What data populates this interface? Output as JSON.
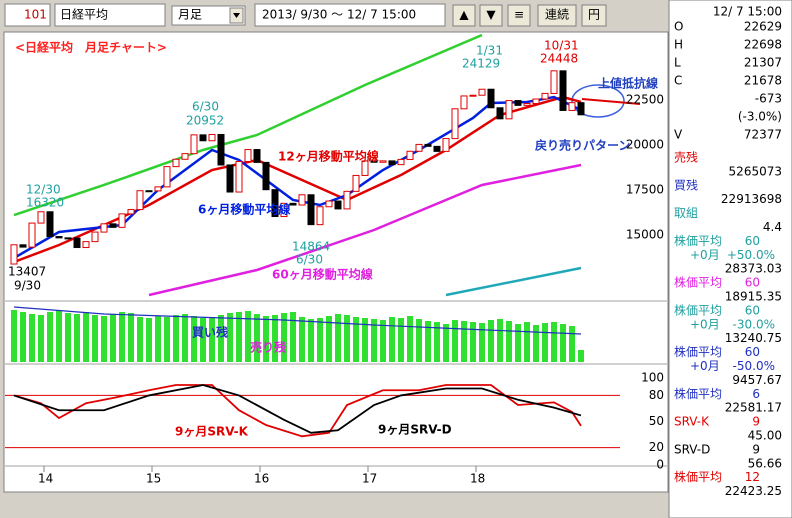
{
  "toolbar": {
    "code": "101",
    "name": "日経平均",
    "period": "月足",
    "range": "2013/ 9/30 ～ 12/ 7 15:00",
    "buttons": [
      "▲",
      "▼",
      "≡"
    ],
    "continuous": "連続",
    "currency": "円"
  },
  "annotations": [
    {
      "text": "<日経平均　月足チャート>",
      "color": "#ff2020"
    },
    {
      "text": "12/30",
      "color": "#20a0a0"
    },
    {
      "text": "16320",
      "color": "#20a0a0"
    },
    {
      "text": "13407",
      "color": "#000000"
    },
    {
      "text": "9/30",
      "color": "#000000"
    },
    {
      "text": "6/30",
      "color": "#20a0a0"
    },
    {
      "text": "20952",
      "color": "#20a0a0"
    },
    {
      "text": "1/31",
      "color": "#20a0a0"
    },
    {
      "text": "24129",
      "color": "#20a0a0"
    },
    {
      "text": "10/31",
      "color": "#e00000"
    },
    {
      "text": "24448",
      "color": "#e00000"
    },
    {
      "text": "14864",
      "color": "#20a0a0"
    },
    {
      "text": "6/30",
      "color": "#20a0a0"
    },
    {
      "text": "上値抵抗線",
      "color": "#2040c0"
    },
    {
      "text": "戻り売りパターン",
      "color": "#2040c0"
    }
  ],
  "chart_data": [
    {
      "type": "candlestick",
      "first_open": 13388,
      "close": [
        14456,
        14328,
        15662,
        16291,
        14915,
        14841,
        14828,
        14304,
        14632,
        15162,
        15621,
        15425,
        16174,
        16414,
        17460,
        17451,
        17674,
        18798,
        19207,
        19520,
        20563,
        20236,
        20585,
        18890,
        17388,
        19083,
        19747,
        19034,
        17518,
        16027,
        16759,
        16666,
        17235,
        15576,
        16569,
        16887,
        16450,
        17425,
        18308,
        19114,
        19041,
        19119,
        18909,
        19197,
        19651,
        20033,
        19925,
        19646,
        20356,
        22012,
        22725,
        22765,
        23098,
        22068,
        21454,
        22468,
        22202,
        22305,
        22554,
        22865,
        24120,
        21920,
        22351,
        21678
      ],
      "ylim": [
        11389,
        26111
      ],
      "yticks": [
        22500,
        20000,
        17500,
        15000
      ],
      "up_color": "#e00000",
      "down_color": "#000000",
      "lines": [
        {
          "color": "#30d030",
          "x": [
            0,
            10,
            21,
            27,
            39,
            52
          ],
          "values": [
            16111,
            17778,
            19722,
            20556,
            23333,
            26111
          ]
        },
        {
          "color": "#20a8b8",
          "x": [
            48,
            63
          ],
          "values": [
            11667,
            13167
          ]
        },
        {
          "name": "60ヶ月移動平均線",
          "color": "#e020e0",
          "x": [
            15,
            27,
            40,
            52,
            63
          ],
          "values": [
            11667,
            13056,
            15278,
            17778,
            18889
          ]
        },
        {
          "name": "12ヶ月移動平均線",
          "color": "#e00000",
          "x": [
            0,
            5,
            15,
            22,
            27,
            32,
            37,
            43,
            48,
            54,
            61,
            63
          ],
          "values": [
            13500,
            14444,
            16667,
            18611,
            19167,
            18056,
            16944,
            18333,
            19722,
            21667,
            22667,
            22389
          ]
        },
        {
          "name": "6ヶ月移動平均線",
          "color": "#0020e0",
          "x": [
            0,
            5,
            12,
            16,
            22,
            25,
            31,
            34,
            37,
            41,
            45,
            51,
            53,
            57,
            60,
            63
          ],
          "values": [
            13722,
            15167,
            15556,
            17500,
            19722,
            19167,
            16944,
            16667,
            17222,
            18611,
            19722,
            21500,
            22333,
            22389,
            22667,
            21944
          ]
        }
      ]
    },
    {
      "type": "bar",
      "ylim": [
        0,
        60
      ],
      "bar": {
        "name": "買い残",
        "color": "#30e030",
        "values": [
          52,
          50,
          48,
          47,
          50,
          52,
          49,
          48,
          50,
          47,
          46,
          48,
          50,
          49,
          45,
          44,
          46,
          45,
          47,
          48,
          46,
          44,
          45,
          47,
          49,
          50,
          51,
          48,
          46,
          47,
          49,
          50,
          45,
          43,
          44,
          46,
          48,
          47,
          45,
          44,
          43,
          42,
          45,
          44,
          46,
          43,
          41,
          40,
          38,
          42,
          41,
          40,
          39,
          42,
          43,
          41,
          38,
          40,
          37,
          39,
          40,
          38,
          36,
          12
        ]
      },
      "line": {
        "name": "売り残",
        "color": "#2030c0",
        "x": [
          0,
          10,
          20,
          30,
          40,
          50,
          63
        ],
        "values": [
          55,
          48,
          45,
          42,
          37,
          33,
          28
        ]
      }
    },
    {
      "type": "line",
      "ylim": [
        0,
        115
      ],
      "yticks": [
        100,
        80,
        50,
        20,
        0
      ],
      "ref_lines": [
        80,
        20
      ],
      "ref_color": "#e00000",
      "xticks": [
        {
          "value": 4,
          "label": "14"
        },
        {
          "value": 16,
          "label": "15"
        },
        {
          "value": 28,
          "label": "16"
        },
        {
          "value": 40,
          "label": "17"
        },
        {
          "value": 52,
          "label": "18"
        }
      ],
      "series": [
        {
          "name": "9ヶ月SRV-K",
          "color": "#e00000",
          "x": [
            0,
            3,
            5,
            8,
            11,
            15,
            18,
            22,
            25,
            28,
            32,
            35,
            37,
            41,
            45,
            48,
            53,
            56,
            60,
            62,
            63
          ],
          "values": [
            80,
            71,
            54,
            71,
            77,
            86,
            92,
            92,
            63,
            46,
            33,
            37,
            69,
            86,
            86,
            92,
            92,
            69,
            72,
            61,
            45
          ]
        },
        {
          "name": "9ヶ月SRV-D",
          "color": "#000000",
          "x": [
            0,
            5,
            10,
            15,
            21,
            25,
            30,
            33,
            36,
            40,
            43,
            48,
            52,
            56,
            60,
            63
          ],
          "values": [
            80,
            63,
            63,
            80,
            92,
            80,
            52,
            37,
            40,
            69,
            80,
            88,
            88,
            75,
            66,
            57
          ]
        }
      ]
    }
  ],
  "info": {
    "time": "12/ 7 15:00",
    "rows": [
      {
        "label": "O",
        "value": "22629"
      },
      {
        "label": "H",
        "value": "22698"
      },
      {
        "label": "L",
        "value": "21307"
      },
      {
        "label": "C",
        "value": "21678"
      },
      {
        "value": "-673"
      },
      {
        "value": "(-3.0%)"
      },
      {
        "label": "V",
        "value": "72377"
      }
    ]
  },
  "indicators": [
    {
      "name": "売残",
      "value": "5265073",
      "color": "#e00000"
    },
    {
      "name": "買残",
      "value": "22913698",
      "color": "#2030c0"
    },
    {
      "name": "取組",
      "value": "4.4",
      "color": "#20a0a0"
    },
    {
      "name": "株価平均",
      "param": "60",
      "shift": "+0月",
      "pct": "+50.0%",
      "value": "28373.03",
      "color": "#20a0a0"
    },
    {
      "name": "株価平均",
      "param": "60",
      "value": "18915.35",
      "color": "#e020e0"
    },
    {
      "name": "株価平均",
      "param": "60",
      "shift": "+0月",
      "pct": "-30.0%",
      "value": "13240.75",
      "color": "#20a0a0"
    },
    {
      "name": "株価平均",
      "param": "60",
      "shift": "+0月",
      "pct": "-50.0%",
      "value": "9457.67",
      "color": "#2030c0"
    },
    {
      "name": "株価平均",
      "param": "6",
      "value": "22581.17",
      "color": "#2030c0"
    },
    {
      "name": "SRV-K",
      "param": "9",
      "value": "45.00",
      "color": "#e00000"
    },
    {
      "name": "SRV-D",
      "param": "9",
      "value": "56.66",
      "color": "#000000"
    },
    {
      "name": "株価平均",
      "param": "12",
      "value": "22423.25",
      "color": "#e00000"
    }
  ]
}
